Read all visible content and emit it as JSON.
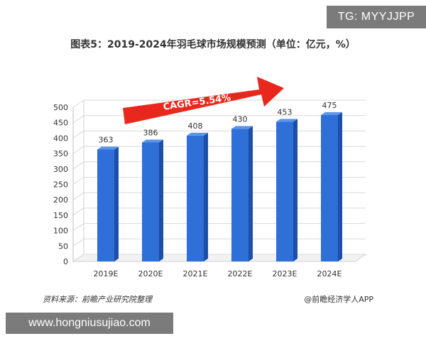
{
  "tag_badge": "TG: MYYJJPP",
  "url_banner": "www.hongniusujiao.com",
  "source_left": "资料来源：前瞻产业研究院整理",
  "source_right": "@前瞻经济学人APP",
  "colors": {
    "bar_front": "#2f6fd8",
    "bar_side": "#1d4fa8",
    "bar_top": "#5b93ea",
    "arrow": "#e8281c"
  },
  "chart_data": {
    "type": "bar",
    "title": "图表5：2019-2024年羽毛球市场规模预测（单位：亿元，%）",
    "categories": [
      "2019E",
      "2020E",
      "2021E",
      "2022E",
      "2023E",
      "2024E"
    ],
    "values": [
      363,
      386,
      408,
      430,
      453,
      475
    ],
    "data_labels": [
      "363",
      "386",
      "408",
      "430",
      "453",
      "475"
    ],
    "ylim": [
      0,
      500
    ],
    "yticks": [
      "0",
      "50",
      "100",
      "150",
      "200",
      "250",
      "300",
      "350",
      "400",
      "450",
      "500"
    ],
    "grid": true,
    "annotation": "CAGR=5.54%"
  }
}
